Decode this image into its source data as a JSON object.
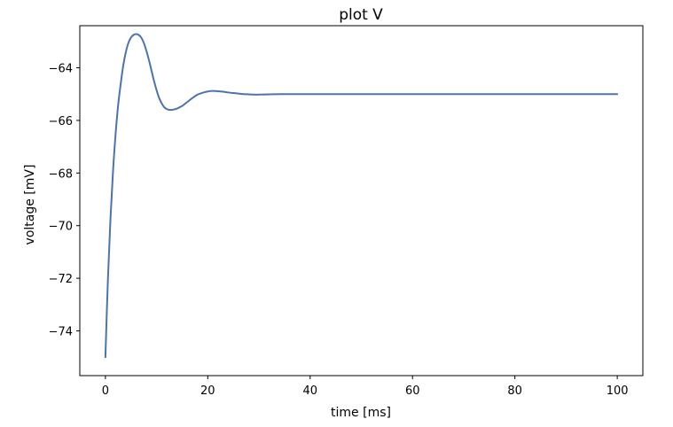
{
  "chart_data": {
    "type": "line",
    "title": "plot V",
    "xlabel": "time [ms]",
    "ylabel": "voltage [mV]",
    "xlim": [
      -5,
      105
    ],
    "ylim": [
      -75.7,
      -62.4
    ],
    "xticks": [
      0,
      20,
      40,
      60,
      80,
      100
    ],
    "xtick_labels": [
      "0",
      "20",
      "40",
      "60",
      "80",
      "100"
    ],
    "yticks": [
      -74,
      -72,
      -70,
      -68,
      -66,
      -64
    ],
    "ytick_labels": [
      "−74",
      "−72",
      "−70",
      "−68",
      "−66",
      "−64"
    ],
    "grid": false,
    "legend": "none",
    "series": [
      {
        "color": "#4c72b0",
        "x": [
          0,
          0.5,
          1,
          1.5,
          2,
          2.5,
          3,
          3.5,
          4,
          4.5,
          5,
          5.5,
          6,
          6.5,
          7,
          7.5,
          8,
          8.5,
          9,
          9.5,
          10,
          10.5,
          11,
          11.5,
          12,
          12.5,
          13,
          13.5,
          14,
          14.5,
          15,
          16,
          17,
          18,
          19,
          20,
          21,
          22,
          23,
          24,
          25,
          26,
          27,
          28,
          29,
          30,
          32,
          34,
          36,
          38,
          40,
          45,
          50,
          60,
          70,
          80,
          90,
          100
        ],
        "y": [
          -75.0,
          -72.0,
          -69.7,
          -67.9,
          -66.5,
          -65.4,
          -64.6,
          -63.9,
          -63.4,
          -63.05,
          -62.85,
          -62.75,
          -62.72,
          -62.75,
          -62.85,
          -63.05,
          -63.35,
          -63.7,
          -64.1,
          -64.5,
          -64.85,
          -65.15,
          -65.35,
          -65.5,
          -65.57,
          -65.6,
          -65.6,
          -65.58,
          -65.55,
          -65.5,
          -65.45,
          -65.3,
          -65.15,
          -65.02,
          -64.95,
          -64.9,
          -64.88,
          -64.89,
          -64.91,
          -64.94,
          -64.96,
          -64.98,
          -65.0,
          -65.01,
          -65.02,
          -65.02,
          -65.01,
          -65.0,
          -65.0,
          -65.0,
          -65.0,
          -65.0,
          -65.0,
          -65.0,
          -65.0,
          -65.0,
          -65.0,
          -65.0
        ]
      }
    ]
  }
}
